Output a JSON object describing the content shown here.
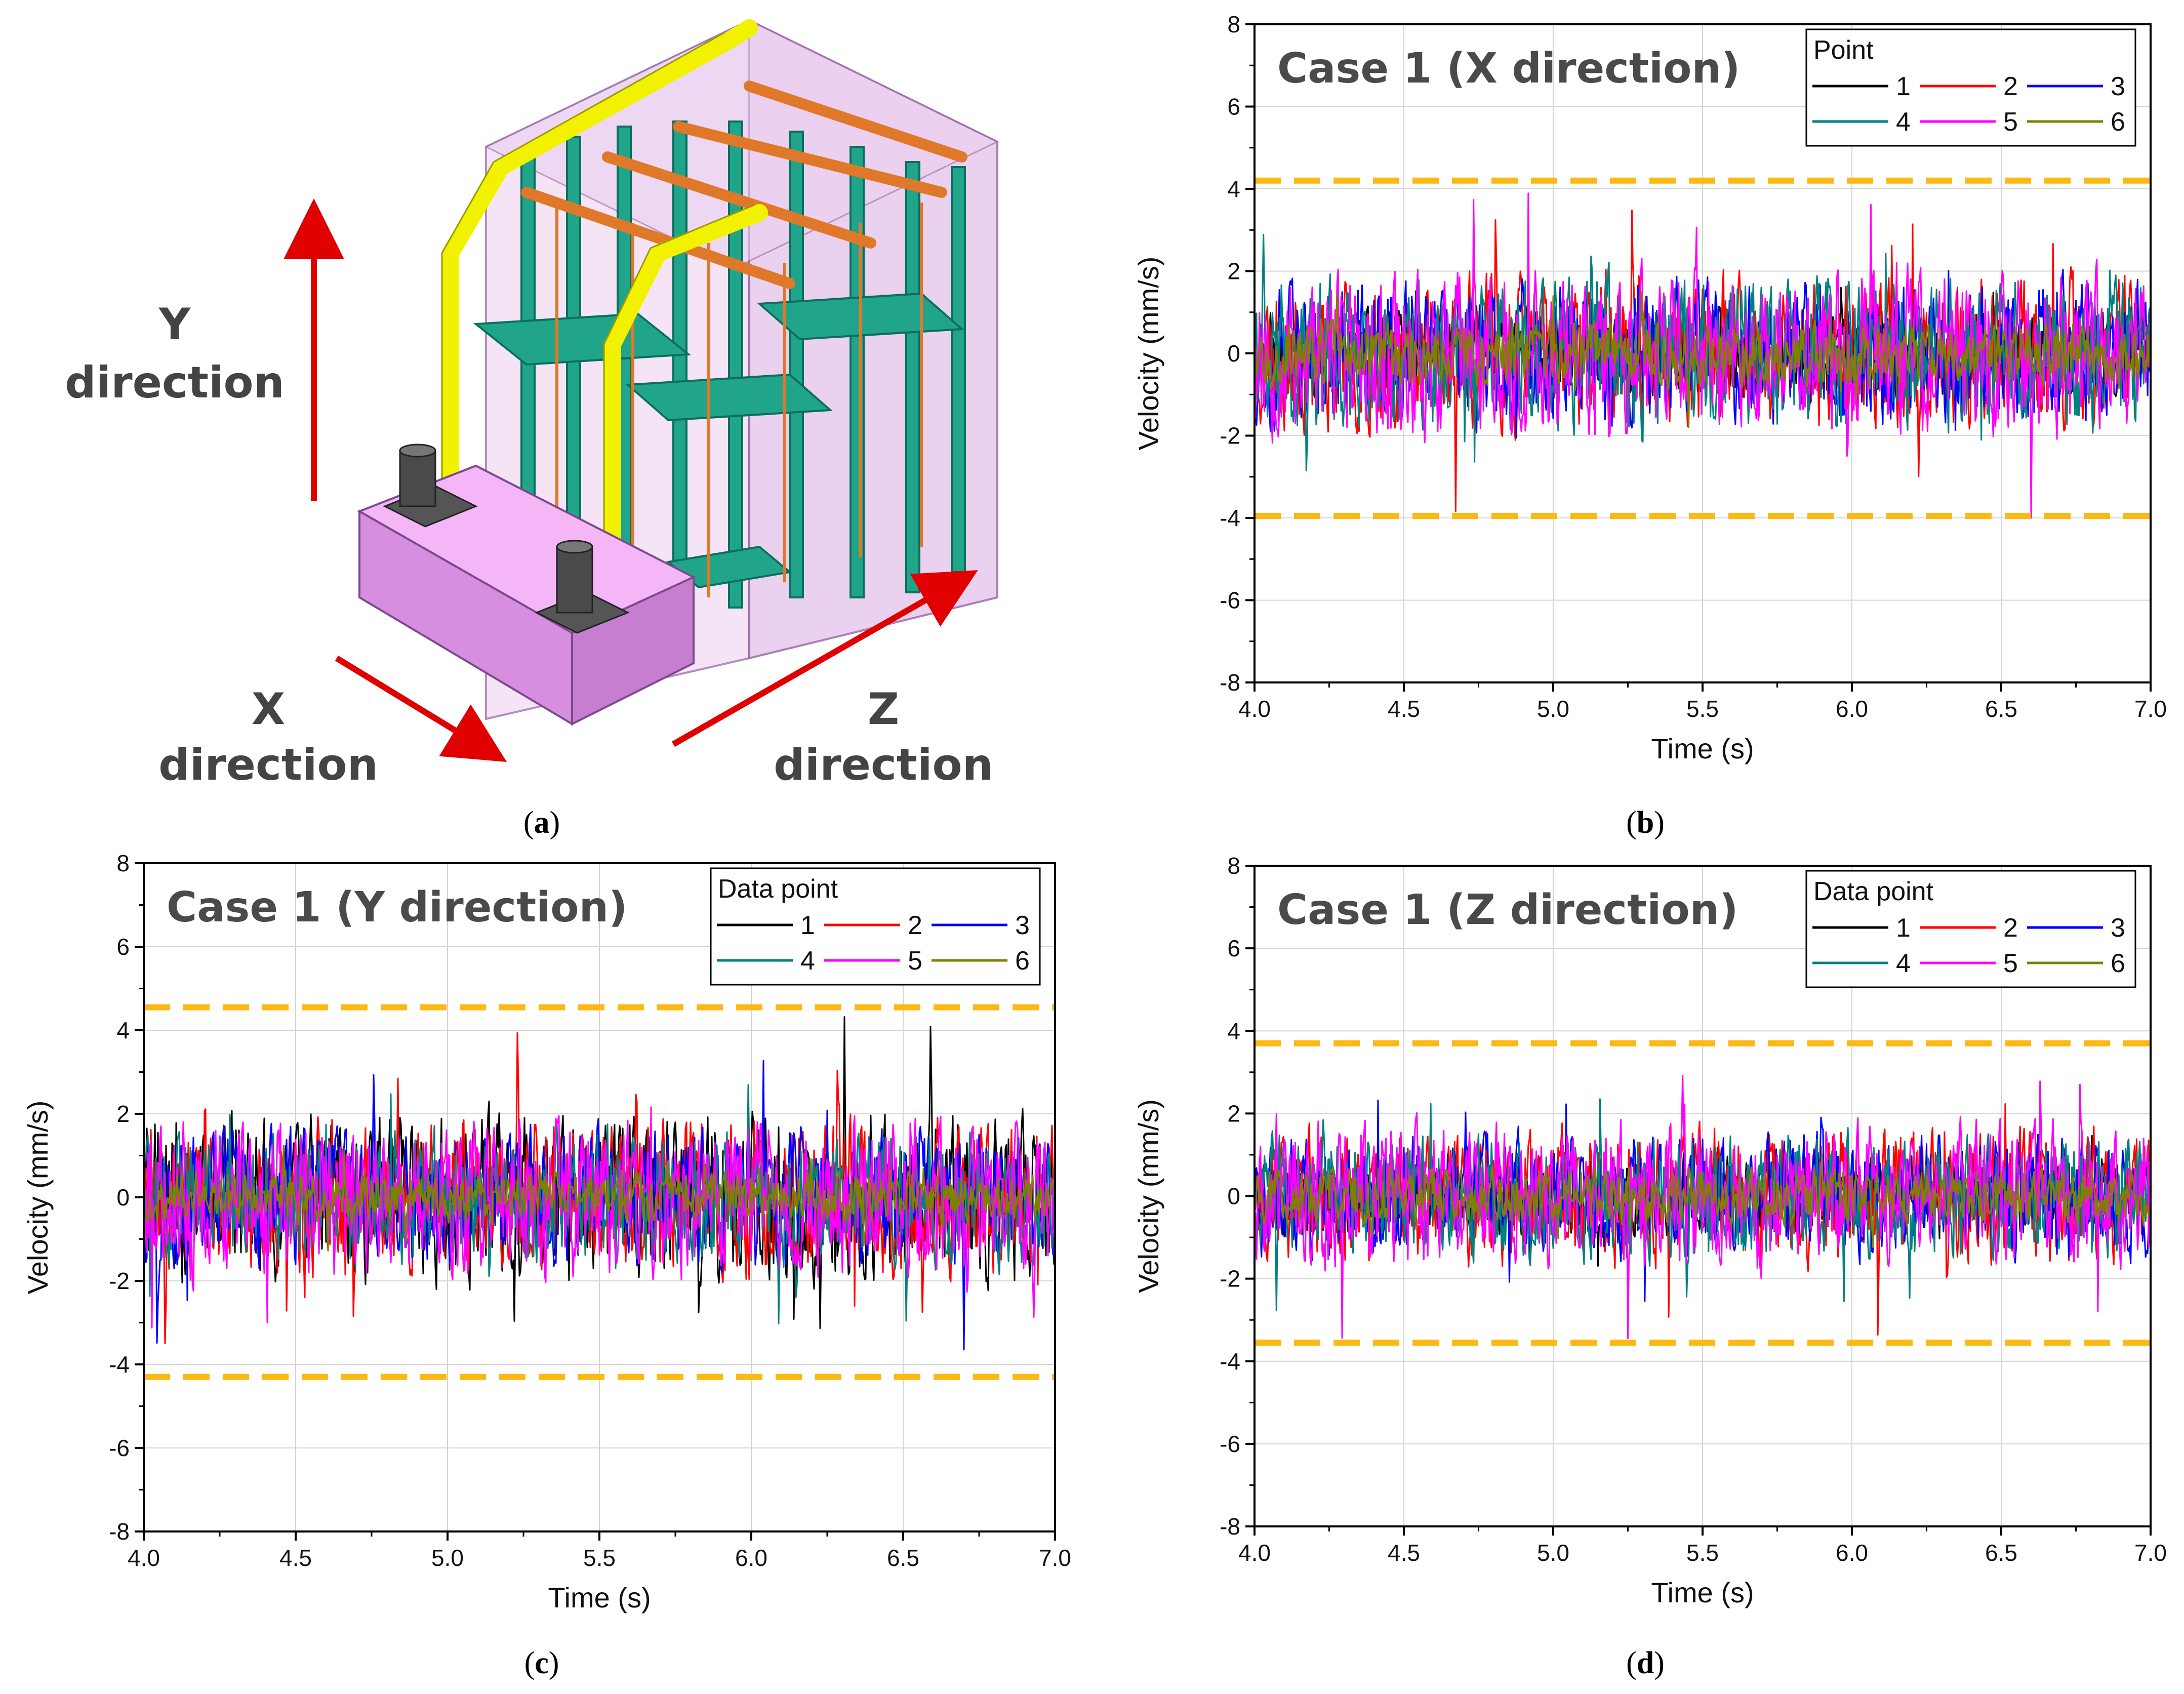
{
  "panels": [
    {
      "key": "a",
      "caption": "a",
      "type": "illustration",
      "directions": {
        "y": [
          "Y",
          "direction"
        ],
        "x": [
          "X",
          "direction"
        ],
        "z": [
          "Z",
          "direction"
        ]
      }
    }
  ],
  "chart_data": [
    {
      "panel": "b",
      "caption": "b",
      "type": "line",
      "title": "Case 1 (X direction)",
      "xlabel": "Time (s)",
      "ylabel": "Velocity (mm/s)",
      "xlim": [
        4.0,
        7.0
      ],
      "ylim": [
        -8,
        8
      ],
      "xticks": [
        "4.0",
        "4.5",
        "5.0",
        "5.5",
        "6.0",
        "6.5",
        "7.0"
      ],
      "yticks": [
        "8",
        "6",
        "4",
        "2",
        "0",
        "-2",
        "-4",
        "-6",
        "-8"
      ],
      "grid": true,
      "legend": {
        "title": "Point",
        "position": "top-right",
        "columns": 3
      },
      "threshold_lines": [
        4.2,
        -3.95
      ],
      "threshold_color": "#FDB913",
      "series": [
        {
          "name": "1",
          "color": "#000000",
          "amplitude": 0.8,
          "seed": 11
        },
        {
          "name": "2",
          "color": "#FF0000",
          "amplitude": 1.4,
          "seed": 23
        },
        {
          "name": "3",
          "color": "#0000FF",
          "amplitude": 1.3,
          "seed": 37
        },
        {
          "name": "4",
          "color": "#008080",
          "amplitude": 1.4,
          "seed": 41
        },
        {
          "name": "5",
          "color": "#FF00FF",
          "amplitude": 1.5,
          "seed": 53
        },
        {
          "name": "6",
          "color": "#808000",
          "amplitude": 0.55,
          "seed": 67
        }
      ],
      "approx_peak": 4.0
    },
    {
      "panel": "c",
      "caption": "c",
      "type": "line",
      "title": "Case 1 (Y direction)",
      "xlabel": "Time (s)",
      "ylabel": "Velocity (mm/s)",
      "xlim": [
        4.0,
        7.0
      ],
      "ylim": [
        -8,
        8
      ],
      "xticks": [
        "4.0",
        "4.5",
        "5.0",
        "5.5",
        "6.0",
        "6.5",
        "7.0"
      ],
      "yticks": [
        "8",
        "6",
        "4",
        "2",
        "0",
        "-2",
        "-4",
        "-6",
        "-8"
      ],
      "grid": true,
      "legend": {
        "title": "Data point",
        "position": "top-right",
        "columns": 3
      },
      "threshold_lines": [
        4.55,
        -4.3
      ],
      "threshold_color": "#FDB913",
      "series": [
        {
          "name": "1",
          "color": "#000000",
          "amplitude": 1.5,
          "seed": 71
        },
        {
          "name": "2",
          "color": "#FF0000",
          "amplitude": 1.4,
          "seed": 83
        },
        {
          "name": "3",
          "color": "#0000FF",
          "amplitude": 1.2,
          "seed": 97
        },
        {
          "name": "4",
          "color": "#008080",
          "amplitude": 1.2,
          "seed": 101
        },
        {
          "name": "5",
          "color": "#FF00FF",
          "amplitude": 1.4,
          "seed": 113
        },
        {
          "name": "6",
          "color": "#808000",
          "amplitude": 0.45,
          "seed": 127
        }
      ],
      "approx_peak": 4.4
    },
    {
      "panel": "d",
      "caption": "d",
      "type": "line",
      "title": "Case 1 (Z direction)",
      "xlabel": "Time (s)",
      "ylabel": "Velocity (mm/s)",
      "xlim": [
        4.0,
        7.0
      ],
      "ylim": [
        -8,
        8
      ],
      "xticks": [
        "4.0",
        "4.5",
        "5.0",
        "5.5",
        "6.0",
        "6.5",
        "7.0"
      ],
      "yticks": [
        "8",
        "6",
        "4",
        "2",
        "0",
        "-2",
        "-4",
        "-6",
        "-8"
      ],
      "grid": true,
      "legend": {
        "title": "Data point",
        "position": "top-right",
        "columns": 3
      },
      "threshold_lines": [
        3.7,
        -3.55
      ],
      "threshold_color": "#FDB913",
      "series": [
        {
          "name": "1",
          "color": "#000000",
          "amplitude": 0.7,
          "seed": 131
        },
        {
          "name": "2",
          "color": "#FF0000",
          "amplitude": 1.2,
          "seed": 137
        },
        {
          "name": "3",
          "color": "#0000FF",
          "amplitude": 1.1,
          "seed": 149
        },
        {
          "name": "4",
          "color": "#008080",
          "amplitude": 1.1,
          "seed": 151
        },
        {
          "name": "5",
          "color": "#FF00FF",
          "amplitude": 1.3,
          "seed": 163
        },
        {
          "name": "6",
          "color": "#808000",
          "amplitude": 0.5,
          "seed": 173
        }
      ],
      "approx_peak": 3.6
    }
  ]
}
